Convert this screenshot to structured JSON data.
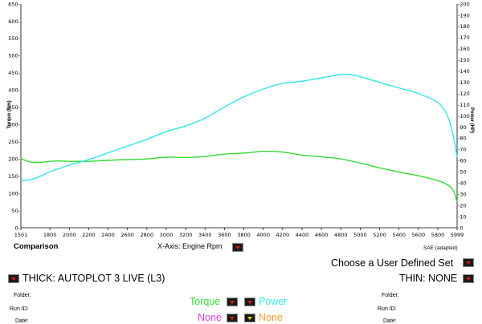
{
  "chart_data": {
    "type": "line",
    "x_axis": {
      "label": "X-Axis: Engine Rpm",
      "ticks": [
        1501,
        1800,
        2000,
        2200,
        2400,
        2600,
        2800,
        3000,
        3200,
        3400,
        3600,
        3800,
        4000,
        4200,
        4400,
        4600,
        4800,
        5000,
        5200,
        5400,
        5600,
        5800,
        5999
      ],
      "range": [
        1501,
        5999
      ]
    },
    "y_left": {
      "label": "Torque (Nm)",
      "range": [
        0,
        650
      ],
      "ticks": [
        0,
        50,
        100,
        150,
        200,
        250,
        300,
        350,
        400,
        450,
        500,
        550,
        600,
        650
      ],
      "tick_labels": [
        "0-",
        "50-",
        "100-",
        "150-",
        "200-",
        "250-",
        "300-",
        "350-",
        "400-",
        "450-",
        "500-",
        "550-",
        "600-",
        "650-"
      ]
    },
    "y_right": {
      "label": "Power (HP)",
      "range": [
        0,
        200
      ],
      "ticks": [
        0,
        10,
        20,
        30,
        40,
        50,
        60,
        70,
        80,
        90,
        100,
        110,
        120,
        130,
        140,
        150,
        160,
        170,
        180,
        190,
        200
      ],
      "tick_labels": [
        "-0",
        "-10",
        "-20",
        "-30",
        "-40",
        "-50",
        "-60",
        "-70",
        "-80",
        "-90",
        "-100",
        "-110",
        "-120",
        "-130",
        "-140",
        "-150",
        "-160",
        "-170",
        "-180",
        "-190",
        "-200"
      ]
    },
    "grid": false,
    "series": [
      {
        "name": "Torque",
        "axis": "left",
        "color": "#33dd33",
        "x": [
          1501,
          1600,
          1700,
          1800,
          1900,
          2000,
          2200,
          2400,
          2600,
          2800,
          3000,
          3200,
          3400,
          3600,
          3800,
          4000,
          4200,
          4400,
          4600,
          4800,
          5000,
          5200,
          5400,
          5600,
          5800,
          5900,
          5960,
          5999
        ],
        "y": [
          201,
          191,
          190,
          193,
          194,
          193,
          193,
          196,
          198,
          200,
          205,
          204,
          207,
          214,
          217,
          222,
          220,
          211,
          206,
          200,
          188,
          174,
          162,
          151,
          137,
          125,
          108,
          76
        ]
      },
      {
        "name": "Power",
        "axis": "right",
        "color": "#33e6e6",
        "x": [
          1501,
          1600,
          1700,
          1800,
          1900,
          2000,
          2200,
          2400,
          2600,
          2800,
          3000,
          3200,
          3400,
          3600,
          3800,
          4000,
          4200,
          4400,
          4600,
          4800,
          4900,
          5000,
          5200,
          5400,
          5600,
          5800,
          5900,
          5960,
          5999
        ],
        "y": [
          42,
          43,
          46,
          50,
          53,
          56,
          61,
          67,
          73,
          79,
          86,
          91,
          98,
          108,
          117,
          124,
          129,
          131,
          134,
          137,
          137,
          135,
          130,
          125,
          120,
          112,
          100,
          82,
          63
        ]
      }
    ]
  },
  "footer": {
    "sae": "SAE (adapted)",
    "comparison": "Comparison",
    "user_defined": "Choose a User Defined Set",
    "thick": "THICK: AUTOPLOT 3 LIVE (L3)",
    "thin": "THIN: NONE",
    "folder_label": "Folder:",
    "runid_label": "Run ID:",
    "date_label": "Date:",
    "torque": "Torque",
    "power": "Power",
    "none1": "None",
    "none2": "None"
  },
  "colors": {
    "torque": "#33dd33",
    "power": "#33e6e6",
    "none1": "#e040e0",
    "none2": "#f0a030",
    "dropdown_arrow": "#e01818"
  }
}
